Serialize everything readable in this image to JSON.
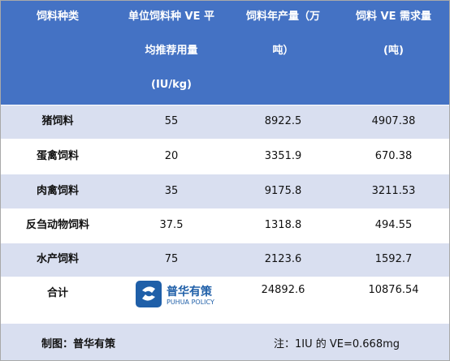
{
  "table": {
    "header": [
      [
        "饲料种类"
      ],
      [
        "单位饲料种 VE 平",
        "均推荐用量",
        "(IU/kg)"
      ],
      [
        "饲料年产量（万",
        "吨）"
      ],
      [
        "饲料 VE 需求量",
        "(吨)"
      ]
    ],
    "rows": [
      [
        "猪饲料",
        55,
        8922.5,
        4907.38
      ],
      [
        "蛋禽饲料",
        20,
        3351.9,
        670.38
      ],
      [
        "肉禽饲料",
        35,
        9175.8,
        3211.53
      ],
      [
        "反刍动物饲料",
        37.5,
        1318.8,
        494.55
      ],
      [
        "水产饲料",
        75,
        2123.6,
        1592.7
      ]
    ],
    "total": {
      "label": "合计",
      "production": 24892.6,
      "demand": 10876.54
    }
  },
  "logo": {
    "name": "普华有策",
    "subtitle": "PUHUA POLICY"
  },
  "footer": {
    "credit": "制图：普华有策",
    "note": "注：1IU 的 VE=0.668mg"
  }
}
